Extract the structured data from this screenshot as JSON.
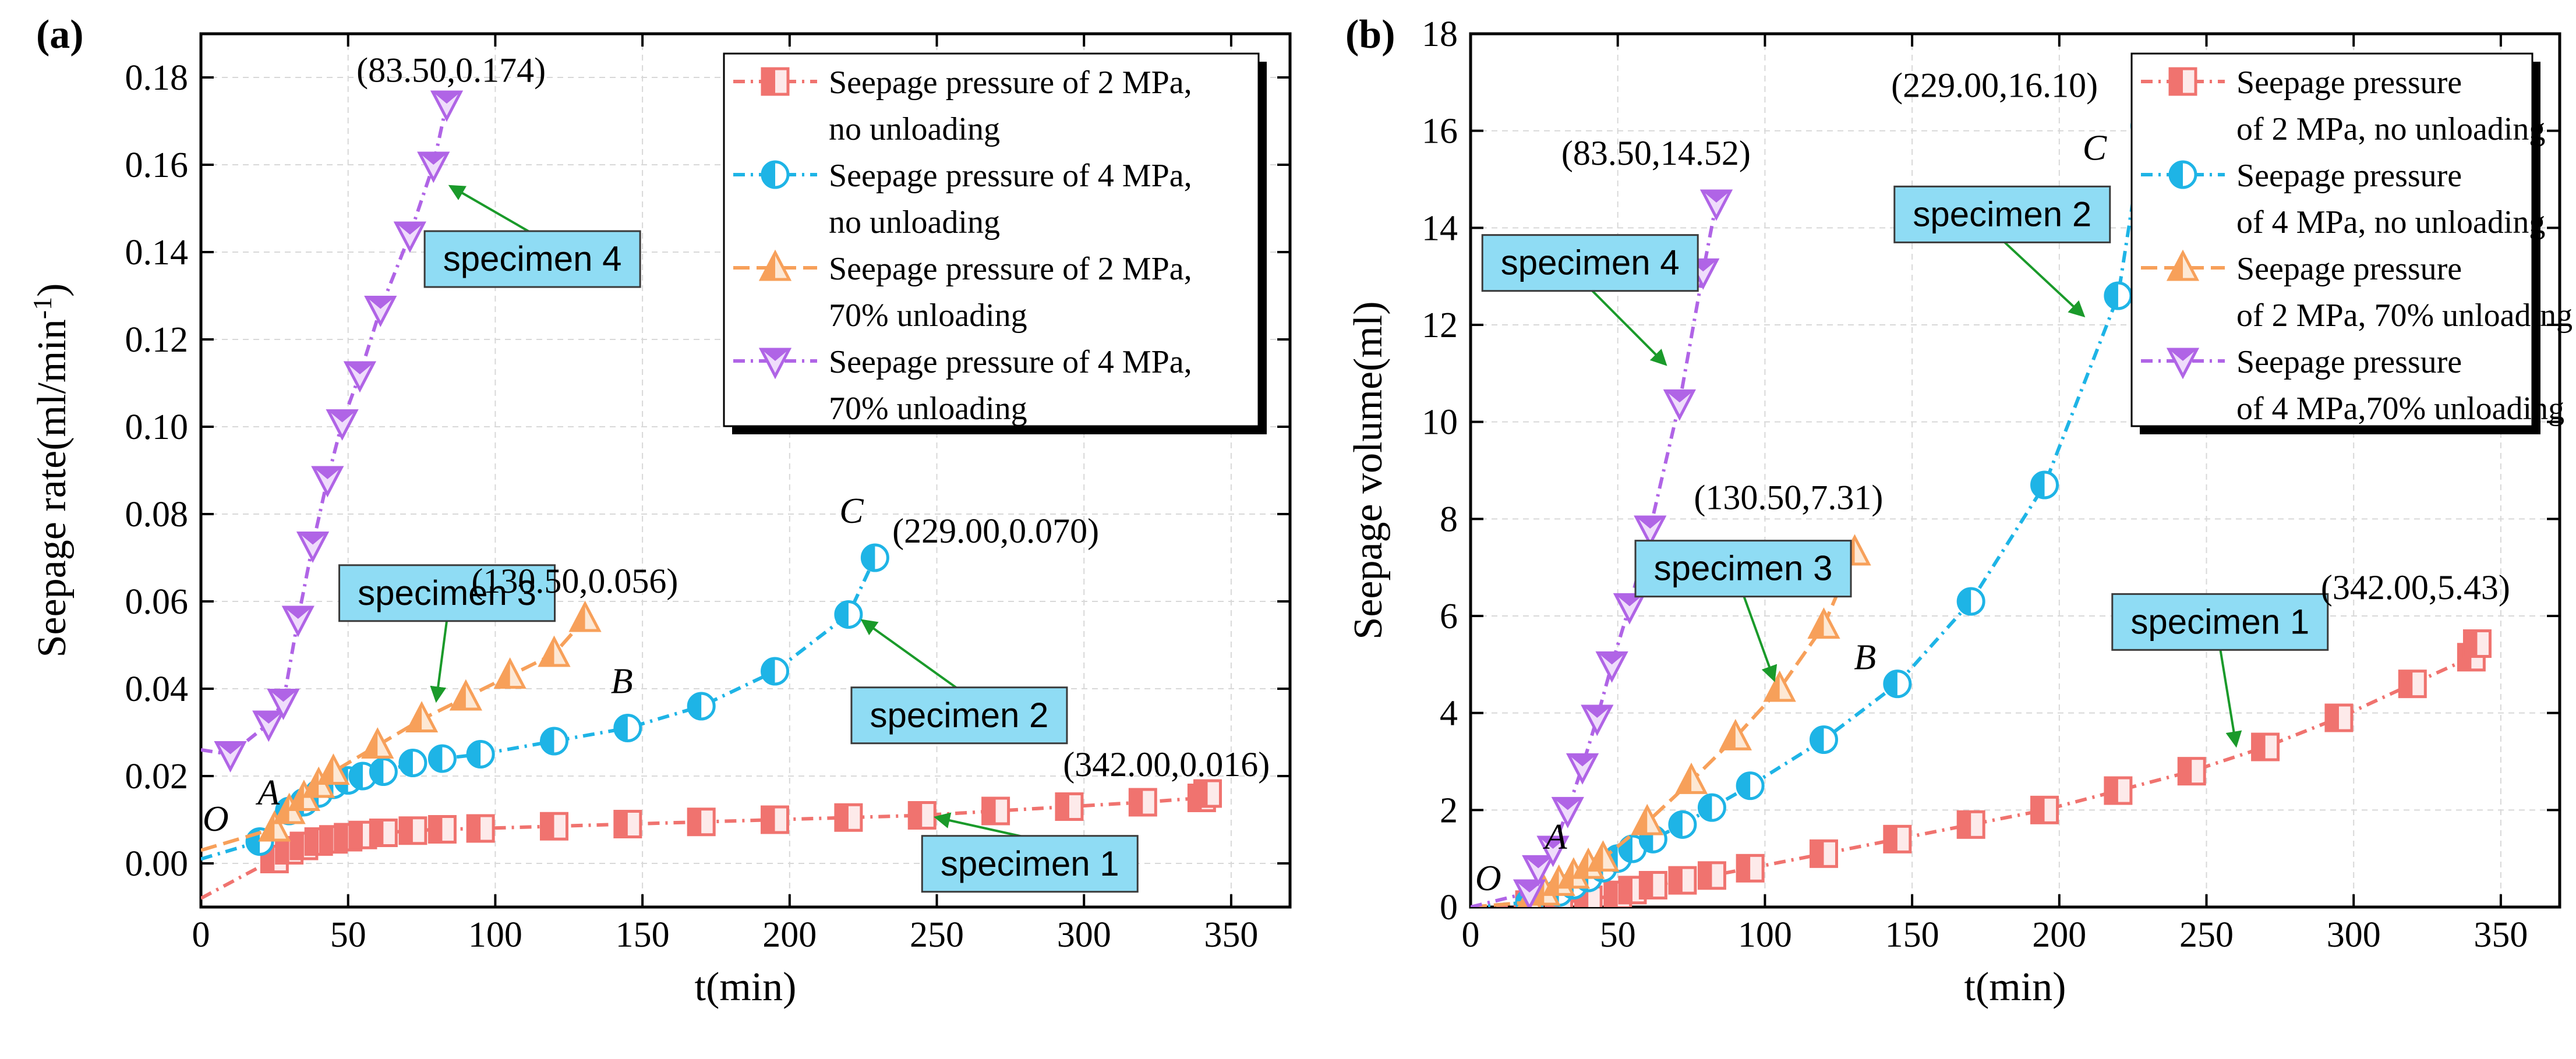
{
  "chart_data": [
    {
      "type": "line",
      "panel_label": "(a)",
      "xlabel": "t(min)",
      "ylabel": "Seepage rate(ml/min",
      "ylabel_sup": "-1",
      "ylabel_end": ")",
      "xlim": [
        0,
        370
      ],
      "ylim": [
        -0.01,
        0.19
      ],
      "x_ticks": [
        0,
        50,
        100,
        150,
        200,
        250,
        300,
        350
      ],
      "y_ticks": [
        0.0,
        0.02,
        0.04,
        0.06,
        0.08,
        0.1,
        0.12,
        0.14,
        0.16,
        0.18
      ],
      "y_tick_labels": [
        "0.00",
        "0.02",
        "0.04",
        "0.06",
        "0.08",
        "0.10",
        "0.12",
        "0.14",
        "0.16",
        "0.18"
      ],
      "grid": true,
      "legend_position": "top-right",
      "series": [
        {
          "name": "Seepage pressure of 2 MPa, no unloading",
          "legend_lines": [
            "Seepage pressure of 2 MPa,",
            "no unloading"
          ],
          "color": "#f0736f",
          "marker": "square",
          "x": [
            0,
            25,
            30,
            35,
            40,
            45,
            50,
            55,
            62,
            72,
            82,
            95,
            120,
            145,
            170,
            195,
            220,
            245,
            270,
            295,
            320,
            340,
            342
          ],
          "y": [
            -0.008,
            0.001,
            0.003,
            0.004,
            0.005,
            0.0055,
            0.006,
            0.0065,
            0.007,
            0.0075,
            0.0078,
            0.008,
            0.0085,
            0.009,
            0.0095,
            0.01,
            0.0105,
            0.011,
            0.012,
            0.013,
            0.014,
            0.015,
            0.016
          ]
        },
        {
          "name": "Seepage pressure of 4 MPa, no unloading",
          "legend_lines": [
            "Seepage pressure of 4 MPa,",
            "no unloading"
          ],
          "color": "#1eb4e6",
          "marker": "halfcircle",
          "x": [
            0,
            20,
            30,
            35,
            40,
            45,
            50,
            55,
            62,
            72,
            82,
            95,
            120,
            145,
            170,
            195,
            220,
            229
          ],
          "y": [
            0.001,
            0.005,
            0.012,
            0.014,
            0.016,
            0.018,
            0.019,
            0.02,
            0.021,
            0.023,
            0.024,
            0.025,
            0.028,
            0.031,
            0.036,
            0.044,
            0.057,
            0.07
          ]
        },
        {
          "name": "Seepage pressure of 2 MPa, 70% unloading",
          "legend_lines": [
            "Seepage pressure of 2 MPa,",
            "70% unloading"
          ],
          "color": "#f7a05a",
          "marker": "triangle-up",
          "x": [
            0,
            25,
            30,
            35,
            40,
            45,
            60,
            75,
            90,
            105,
            120,
            130.5
          ],
          "y": [
            0.003,
            0.008,
            0.012,
            0.015,
            0.018,
            0.021,
            0.027,
            0.033,
            0.038,
            0.043,
            0.048,
            0.056
          ]
        },
        {
          "name": "Seepage pressure of 4 MPa, 70% unloading",
          "legend_lines": [
            "Seepage pressure of 4 MPa,",
            "70% unloading"
          ],
          "color": "#b064e6",
          "marker": "triangle-down",
          "x": [
            0,
            10,
            23,
            28,
            33,
            38,
            43,
            48,
            54,
            61,
            71,
            79,
            83.5
          ],
          "y": [
            0.026,
            0.025,
            0.032,
            0.037,
            0.056,
            0.073,
            0.088,
            0.101,
            0.112,
            0.127,
            0.144,
            0.16,
            0.174
          ]
        }
      ],
      "specimens": [
        {
          "text": "specimen 1",
          "series": 0,
          "box_xy": [
            245,
            -0.0065
          ],
          "arrow_to": [
            250,
            0.0105
          ]
        },
        {
          "text": "specimen 2",
          "series": 1,
          "box_xy": [
            221,
            0.0275
          ],
          "arrow_to": [
            225,
            0.0555
          ]
        },
        {
          "text": "specimen 3",
          "series": 2,
          "box_xy": [
            47,
            0.0555
          ],
          "arrow_to": [
            80,
            0.0375
          ]
        },
        {
          "text": "specimen 4",
          "series": 3,
          "box_xy": [
            76,
            0.132
          ],
          "arrow_to": [
            85,
            0.155
          ]
        }
      ],
      "annotations": [
        {
          "text": "(83.50,0.174)",
          "x": 85,
          "y": 0.179
        },
        {
          "text": "(130.50,0.056)",
          "x": 127,
          "y": 0.062
        },
        {
          "text": "(229.00,0.070)",
          "x": 270,
          "y": 0.0735
        },
        {
          "text": "(342.00,0.016)",
          "x": 328,
          "y": 0.02
        }
      ],
      "point_labels": [
        {
          "text": "O",
          "x": 5,
          "y": 0.0075
        },
        {
          "text": "A",
          "x": 23,
          "y": 0.0135
        },
        {
          "text": "B",
          "x": 143,
          "y": 0.039
        },
        {
          "text": "C",
          "x": 221,
          "y": 0.078
        }
      ]
    },
    {
      "type": "line",
      "panel_label": "(b)",
      "xlabel": "t(min)",
      "ylabel": "Seepage volume(ml)",
      "xlim": [
        0,
        370
      ],
      "ylim": [
        0,
        18
      ],
      "x_ticks": [
        0,
        50,
        100,
        150,
        200,
        250,
        300,
        350
      ],
      "y_ticks": [
        0,
        2,
        4,
        6,
        8,
        10,
        12,
        14,
        16,
        18
      ],
      "y_tick_labels": [
        "0",
        "2",
        "4",
        "6",
        "8",
        "10",
        "12",
        "14",
        "16",
        "18"
      ],
      "grid": true,
      "legend_position": "top-right",
      "series": [
        {
          "name": "Seepage pressure of 2 MPa, no unloading",
          "legend_lines": [
            "Seepage pressure",
            "of 2 MPa, no unloading"
          ],
          "color": "#f0736f",
          "marker": "square",
          "x": [
            0,
            20,
            30,
            40,
            50,
            55,
            62,
            72,
            82,
            95,
            120,
            145,
            170,
            195,
            220,
            245,
            270,
            295,
            320,
            340,
            342
          ],
          "y": [
            0,
            0.05,
            0.1,
            0.15,
            0.25,
            0.35,
            0.45,
            0.55,
            0.65,
            0.8,
            1.1,
            1.4,
            1.7,
            2.0,
            2.4,
            2.8,
            3.3,
            3.9,
            4.6,
            5.15,
            5.43
          ]
        },
        {
          "name": "Seepage pressure of 4 MPa, no unloading",
          "legend_lines": [
            "Seepage pressure",
            "of 4 MPa, no unloading"
          ],
          "color": "#1eb4e6",
          "marker": "halfcircle",
          "x": [
            0,
            20,
            30,
            35,
            40,
            45,
            50,
            55,
            62,
            72,
            82,
            95,
            120,
            145,
            170,
            195,
            220,
            229
          ],
          "y": [
            0,
            0.1,
            0.3,
            0.45,
            0.6,
            0.8,
            1.0,
            1.2,
            1.4,
            1.7,
            2.05,
            2.5,
            3.45,
            4.6,
            6.3,
            8.7,
            12.6,
            16.1
          ]
        },
        {
          "name": "Seepage pressure of 2 MPa, 70% unloading",
          "legend_lines": [
            "Seepage pressure",
            "of 2 MPa, 70% unloading"
          ],
          "color": "#f7a05a",
          "marker": "triangle-up",
          "x": [
            0,
            20,
            25,
            30,
            35,
            40,
            45,
            60,
            75,
            90,
            105,
            120,
            130.5
          ],
          "y": [
            0,
            0.1,
            0.3,
            0.5,
            0.65,
            0.85,
            1.0,
            1.75,
            2.6,
            3.5,
            4.5,
            5.8,
            7.31
          ]
        },
        {
          "name": "Seepage pressure of 4 MPa, 70% unloading",
          "legend_lines": [
            "Seepage pressure",
            "of 4 MPa,70% unloading"
          ],
          "color": "#b064e6",
          "marker": "triangle-down",
          "x": [
            0,
            20,
            23,
            28,
            33,
            38,
            43,
            48,
            54,
            61,
            71,
            79,
            83.5
          ],
          "y": [
            0,
            0.3,
            0.8,
            1.2,
            2.0,
            2.9,
            3.9,
            5.0,
            6.2,
            7.8,
            10.4,
            13.1,
            14.52
          ]
        }
      ],
      "specimens": [
        {
          "text": "specimen 1",
          "series": 0,
          "box_xy": [
            218,
            5.3
          ],
          "arrow_to": [
            260,
            3.35
          ]
        },
        {
          "text": "specimen 2",
          "series": 1,
          "box_xy": [
            144,
            13.7
          ],
          "arrow_to": [
            208,
            12.2
          ]
        },
        {
          "text": "specimen 3",
          "series": 2,
          "box_xy": [
            56,
            6.4
          ],
          "arrow_to": [
            103,
            4.7
          ]
        },
        {
          "text": "specimen 4",
          "series": 3,
          "box_xy": [
            4,
            12.7
          ],
          "arrow_to": [
            66,
            11.2
          ]
        }
      ],
      "annotations": [
        {
          "text": "(83.50,14.52)",
          "x": 63,
          "y": 15.3
        },
        {
          "text": "(130.50,7.31)",
          "x": 108,
          "y": 8.2
        },
        {
          "text": "(229.00,16.10)",
          "x": 178,
          "y": 16.7
        },
        {
          "text": "(342.00,5.43)",
          "x": 321,
          "y": 6.35
        }
      ],
      "point_labels": [
        {
          "text": "O",
          "x": 6,
          "y": 0.35
        },
        {
          "text": "A",
          "x": 29,
          "y": 1.2
        },
        {
          "text": "B",
          "x": 134,
          "y": 4.9
        },
        {
          "text": "C",
          "x": 212,
          "y": 15.4
        }
      ]
    }
  ]
}
